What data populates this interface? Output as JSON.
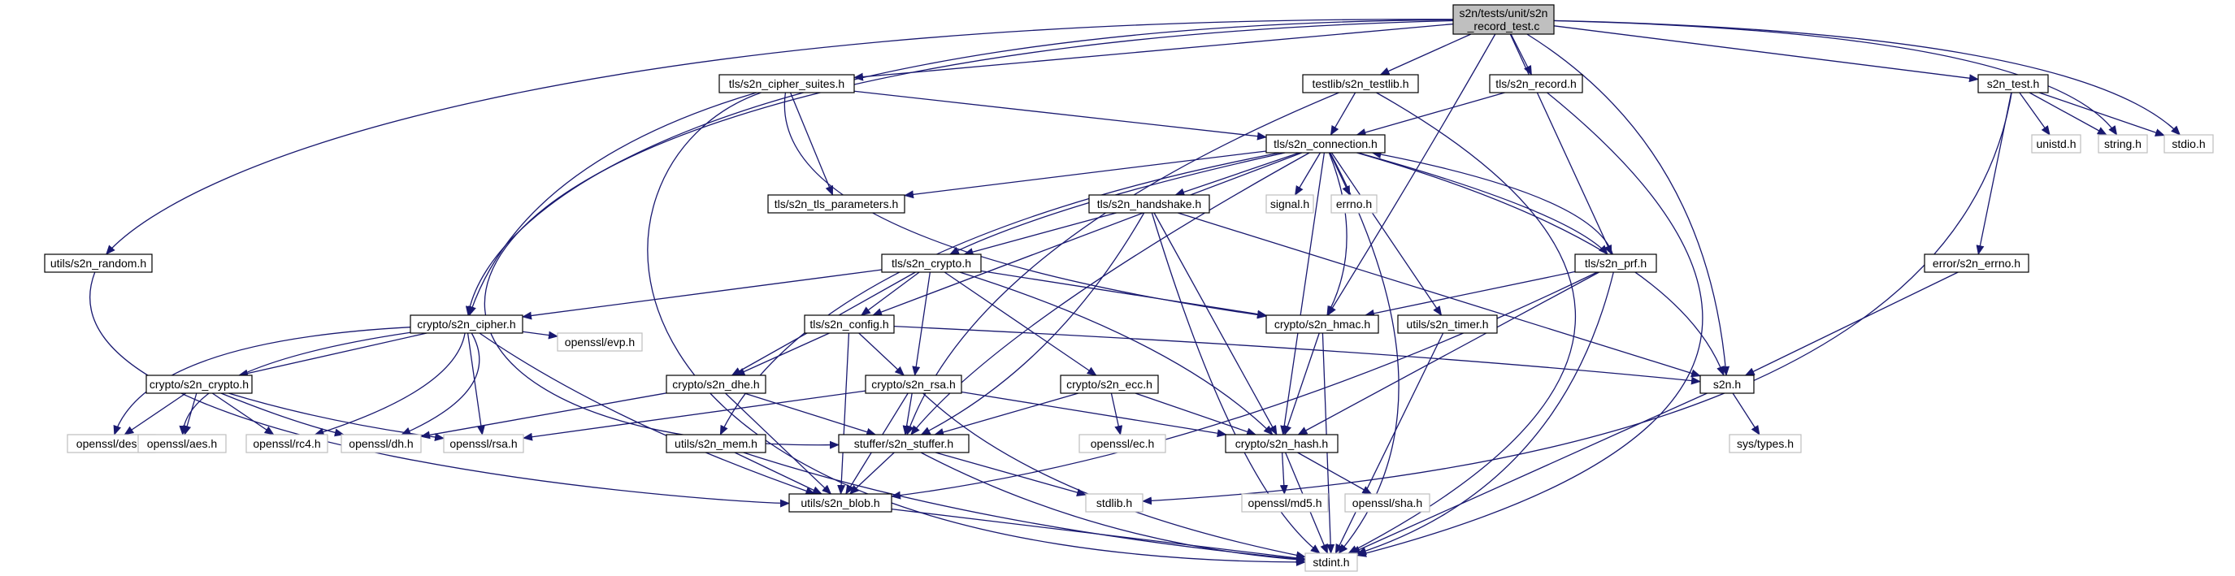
{
  "diagram": {
    "colors": {
      "edge": "#191970",
      "node_border": "#000000",
      "external_border": "#bfbfbf",
      "root_fill": "#bfbfbf",
      "node_fill": "#ffffff",
      "text": "#000000"
    },
    "nodes": [
      {
        "id": "root",
        "lines": [
          "s2n/tests/unit/s2n",
          "_record_test.c"
        ],
        "kind": "root"
      },
      {
        "id": "cipher_suites",
        "lines": [
          "tls/s2n_cipher_suites.h"
        ],
        "kind": "internal"
      },
      {
        "id": "testlib",
        "lines": [
          "testlib/s2n_testlib.h"
        ],
        "kind": "internal"
      },
      {
        "id": "record",
        "lines": [
          "tls/s2n_record.h"
        ],
        "kind": "internal"
      },
      {
        "id": "s2n_test",
        "lines": [
          "s2n_test.h"
        ],
        "kind": "internal"
      },
      {
        "id": "connection",
        "lines": [
          "tls/s2n_connection.h"
        ],
        "kind": "internal"
      },
      {
        "id": "unistd",
        "lines": [
          "unistd.h"
        ],
        "kind": "external"
      },
      {
        "id": "string",
        "lines": [
          "string.h"
        ],
        "kind": "external"
      },
      {
        "id": "stdio",
        "lines": [
          "stdio.h"
        ],
        "kind": "external"
      },
      {
        "id": "tls_params",
        "lines": [
          "tls/s2n_tls_parameters.h"
        ],
        "kind": "internal"
      },
      {
        "id": "signal",
        "lines": [
          "signal.h"
        ],
        "kind": "external"
      },
      {
        "id": "errno",
        "lines": [
          "errno.h"
        ],
        "kind": "external"
      },
      {
        "id": "handshake",
        "lines": [
          "tls/s2n_handshake.h"
        ],
        "kind": "internal"
      },
      {
        "id": "random",
        "lines": [
          "utils/s2n_random.h"
        ],
        "kind": "internal"
      },
      {
        "id": "error",
        "lines": [
          "error/s2n_errno.h"
        ],
        "kind": "internal"
      },
      {
        "id": "tls_crypto",
        "lines": [
          "tls/s2n_crypto.h"
        ],
        "kind": "internal"
      },
      {
        "id": "prf",
        "lines": [
          "tls/s2n_prf.h"
        ],
        "kind": "internal"
      },
      {
        "id": "cipher",
        "lines": [
          "crypto/s2n_cipher.h"
        ],
        "kind": "internal"
      },
      {
        "id": "config",
        "lines": [
          "tls/s2n_config.h"
        ],
        "kind": "internal"
      },
      {
        "id": "hmac",
        "lines": [
          "crypto/s2n_hmac.h"
        ],
        "kind": "internal"
      },
      {
        "id": "timer",
        "lines": [
          "utils/s2n_timer.h"
        ],
        "kind": "internal"
      },
      {
        "id": "evp",
        "lines": [
          "openssl/evp.h"
        ],
        "kind": "external"
      },
      {
        "id": "crypto_crypto",
        "lines": [
          "crypto/s2n_crypto.h"
        ],
        "kind": "internal"
      },
      {
        "id": "dhe",
        "lines": [
          "crypto/s2n_dhe.h"
        ],
        "kind": "internal"
      },
      {
        "id": "rsa",
        "lines": [
          "crypto/s2n_rsa.h"
        ],
        "kind": "internal"
      },
      {
        "id": "ecc",
        "lines": [
          "crypto/s2n_ecc.h"
        ],
        "kind": "internal"
      },
      {
        "id": "s2n_h",
        "lines": [
          "s2n.h"
        ],
        "kind": "internal"
      },
      {
        "id": "des",
        "lines": [
          "openssl/des.h"
        ],
        "kind": "external"
      },
      {
        "id": "aes",
        "lines": [
          "openssl/aes.h"
        ],
        "kind": "external"
      },
      {
        "id": "rc4",
        "lines": [
          "openssl/rc4.h"
        ],
        "kind": "external"
      },
      {
        "id": "dh",
        "lines": [
          "openssl/dh.h"
        ],
        "kind": "external"
      },
      {
        "id": "orsa",
        "lines": [
          "openssl/rsa.h"
        ],
        "kind": "external"
      },
      {
        "id": "mem",
        "lines": [
          "utils/s2n_mem.h"
        ],
        "kind": "internal"
      },
      {
        "id": "stuffer",
        "lines": [
          "stuffer/s2n_stuffer.h"
        ],
        "kind": "internal"
      },
      {
        "id": "ec",
        "lines": [
          "openssl/ec.h"
        ],
        "kind": "external"
      },
      {
        "id": "hash",
        "lines": [
          "crypto/s2n_hash.h"
        ],
        "kind": "internal"
      },
      {
        "id": "systypes",
        "lines": [
          "sys/types.h"
        ],
        "kind": "external"
      },
      {
        "id": "blob",
        "lines": [
          "utils/s2n_blob.h"
        ],
        "kind": "internal"
      },
      {
        "id": "stdlib",
        "lines": [
          "stdlib.h"
        ],
        "kind": "external"
      },
      {
        "id": "md5",
        "lines": [
          "openssl/md5.h"
        ],
        "kind": "external"
      },
      {
        "id": "sha",
        "lines": [
          "openssl/sha.h"
        ],
        "kind": "external"
      },
      {
        "id": "stdint",
        "lines": [
          "stdint.h"
        ],
        "kind": "external"
      }
    ],
    "edges": [
      [
        "root",
        "cipher_suites"
      ],
      [
        "root",
        "testlib"
      ],
      [
        "root",
        "record"
      ],
      [
        "root",
        "s2n_test"
      ],
      [
        "root",
        "string"
      ],
      [
        "root",
        "stdio"
      ],
      [
        "root",
        "random"
      ],
      [
        "root",
        "cipher"
      ],
      [
        "root",
        "hmac"
      ],
      [
        "root",
        "prf"
      ],
      [
        "root",
        "s2n_h"
      ],
      [
        "root",
        "stuffer"
      ],
      [
        "cipher_suites",
        "connection"
      ],
      [
        "cipher_suites",
        "tls_params"
      ],
      [
        "cipher_suites",
        "cipher"
      ],
      [
        "cipher_suites",
        "hmac"
      ],
      [
        "cipher_suites",
        "stdint"
      ],
      [
        "testlib",
        "connection"
      ],
      [
        "testlib",
        "stuffer"
      ],
      [
        "testlib",
        "stdint"
      ],
      [
        "record",
        "connection"
      ],
      [
        "record",
        "stdint"
      ],
      [
        "s2n_test",
        "unistd"
      ],
      [
        "s2n_test",
        "string"
      ],
      [
        "s2n_test",
        "stdio"
      ],
      [
        "s2n_test",
        "error"
      ],
      [
        "s2n_test",
        "stdlib"
      ],
      [
        "connection",
        "tls_params"
      ],
      [
        "connection",
        "signal"
      ],
      [
        "connection",
        "errno"
      ],
      [
        "connection",
        "handshake"
      ],
      [
        "connection",
        "tls_crypto"
      ],
      [
        "connection",
        "prf"
      ],
      [
        "connection",
        "config"
      ],
      [
        "connection",
        "hmac"
      ],
      [
        "connection",
        "timer"
      ],
      [
        "connection",
        "s2n_h"
      ],
      [
        "connection",
        "mem"
      ],
      [
        "connection",
        "stuffer"
      ],
      [
        "connection",
        "hash"
      ],
      [
        "connection",
        "stdint"
      ],
      [
        "handshake",
        "tls_crypto"
      ],
      [
        "handshake",
        "s2n_h"
      ],
      [
        "handshake",
        "stuffer"
      ],
      [
        "handshake",
        "hash"
      ],
      [
        "handshake",
        "stdint"
      ],
      [
        "random",
        "blob"
      ],
      [
        "error",
        "s2n_h"
      ],
      [
        "tls_crypto",
        "cipher"
      ],
      [
        "tls_crypto",
        "config"
      ],
      [
        "tls_crypto",
        "hmac"
      ],
      [
        "tls_crypto",
        "dhe"
      ],
      [
        "tls_crypto",
        "rsa"
      ],
      [
        "tls_crypto",
        "ecc"
      ],
      [
        "tls_crypto",
        "hash"
      ],
      [
        "prf",
        "connection"
      ],
      [
        "prf",
        "hmac"
      ],
      [
        "prf",
        "hash"
      ],
      [
        "prf",
        "blob"
      ],
      [
        "prf",
        "stdint"
      ],
      [
        "cipher",
        "evp"
      ],
      [
        "cipher",
        "crypto_crypto"
      ],
      [
        "cipher",
        "des"
      ],
      [
        "cipher",
        "aes"
      ],
      [
        "cipher",
        "rc4"
      ],
      [
        "cipher",
        "dh"
      ],
      [
        "cipher",
        "orsa"
      ],
      [
        "cipher",
        "blob"
      ],
      [
        "config",
        "dhe"
      ],
      [
        "config",
        "rsa"
      ],
      [
        "config",
        "s2n_h"
      ],
      [
        "config",
        "blob"
      ],
      [
        "hmac",
        "hash"
      ],
      [
        "hmac",
        "stdint"
      ],
      [
        "timer",
        "stdint"
      ],
      [
        "crypto_crypto",
        "des"
      ],
      [
        "crypto_crypto",
        "aes"
      ],
      [
        "crypto_crypto",
        "rc4"
      ],
      [
        "crypto_crypto",
        "dh"
      ],
      [
        "crypto_crypto",
        "orsa"
      ],
      [
        "dhe",
        "dh"
      ],
      [
        "dhe",
        "stuffer"
      ],
      [
        "dhe",
        "blob"
      ],
      [
        "rsa",
        "orsa"
      ],
      [
        "rsa",
        "stuffer"
      ],
      [
        "rsa",
        "hash"
      ],
      [
        "rsa",
        "blob"
      ],
      [
        "rsa",
        "stdint"
      ],
      [
        "ecc",
        "ec"
      ],
      [
        "ecc",
        "stuffer"
      ],
      [
        "ecc",
        "hash"
      ],
      [
        "s2n_h",
        "systypes"
      ],
      [
        "s2n_h",
        "stdint"
      ],
      [
        "mem",
        "blob"
      ],
      [
        "mem",
        "stdint"
      ],
      [
        "stuffer",
        "blob"
      ],
      [
        "stuffer",
        "stdlib"
      ],
      [
        "stuffer",
        "stdint"
      ],
      [
        "hash",
        "md5"
      ],
      [
        "hash",
        "sha"
      ],
      [
        "hash",
        "stdint"
      ],
      [
        "blob",
        "stdint"
      ]
    ]
  }
}
